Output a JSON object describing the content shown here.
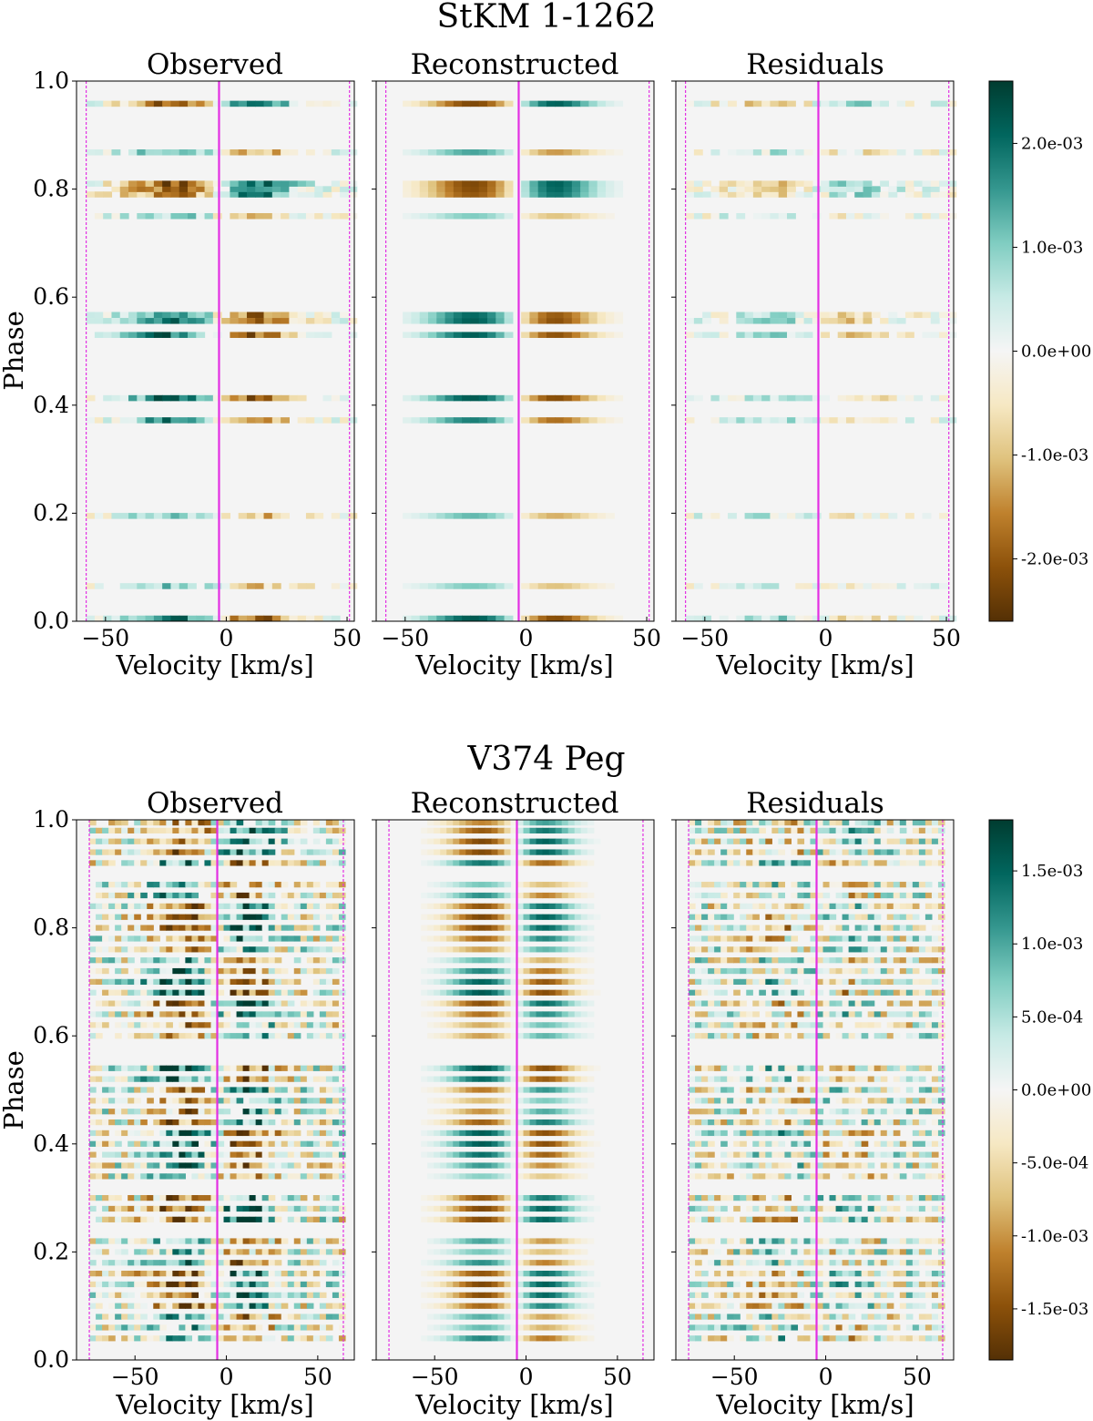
{
  "figures": [
    {
      "title": "StKM 1-1262",
      "ylabel": "Phase",
      "xlabel": "Velocity [km/s]",
      "colorbar_ticks": [
        "2.0e-03",
        "1.0e-03",
        "0.0e+00",
        "-1.0e-03",
        "-2.0e-03"
      ],
      "panels": [
        {
          "title": "Observed"
        },
        {
          "title": "Reconstructed"
        },
        {
          "title": "Residuals"
        }
      ]
    },
    {
      "title": "V374 Peg",
      "ylabel": "Phase",
      "xlabel": "Velocity [km/s]",
      "colorbar_ticks": [
        "1.5e-03",
        "1.0e-03",
        "5.0e-04",
        "0.0e+00",
        "-5.0e-04",
        "-1.0e-03",
        "-1.5e-03"
      ],
      "panels": [
        {
          "title": "Observed"
        },
        {
          "title": "Reconstructed"
        },
        {
          "title": "Residuals"
        }
      ]
    }
  ],
  "chart_data": [
    {
      "type": "heatmap",
      "title": "StKM 1-1262",
      "panels": [
        "Observed",
        "Reconstructed",
        "Residuals"
      ],
      "xlabel": "Velocity [km/s]",
      "ylabel": "Phase",
      "xlim": [
        -62,
        53
      ],
      "ylim": [
        0.0,
        1.0
      ],
      "xticks": [
        -50,
        0,
        50
      ],
      "xtick_labels": [
        "−50",
        "0",
        "50"
      ],
      "yticks": [
        0.0,
        0.2,
        0.4,
        0.6,
        0.8,
        1.0
      ],
      "ytick_labels": [
        "0.0",
        "0.2",
        "0.4",
        "0.6",
        "0.8",
        "1.0"
      ],
      "center_velocity": -3,
      "vsini_limits": [
        -58,
        51
      ],
      "colorbar_range": [
        -0.0026,
        0.0026
      ],
      "colorbar_ticks": [
        0.002,
        0.001,
        0.0,
        -0.001,
        -0.002
      ],
      "colormap": "BrBG",
      "phases": [
        0.005,
        0.065,
        0.195,
        0.372,
        0.413,
        0.53,
        0.556,
        0.567,
        0.75,
        0.79,
        0.8,
        0.81,
        0.868,
        0.958
      ]
    },
    {
      "type": "heatmap",
      "title": "V374 Peg",
      "panels": [
        "Observed",
        "Reconstructed",
        "Residuals"
      ],
      "xlabel": "Velocity [km/s]",
      "ylabel": "Phase",
      "xlim": [
        -82,
        70
      ],
      "ylim": [
        0.0,
        1.0
      ],
      "xticks": [
        -50,
        0,
        50
      ],
      "xtick_labels": [
        "−50",
        "0",
        "50"
      ],
      "yticks": [
        0.0,
        0.2,
        0.4,
        0.6,
        0.8,
        1.0
      ],
      "ytick_labels": [
        "0.0",
        "0.2",
        "0.4",
        "0.6",
        "0.8",
        "1.0"
      ],
      "center_velocity": -5,
      "vsini_limits": [
        -75,
        64
      ],
      "colorbar_range": [
        -0.00185,
        0.00185
      ],
      "colorbar_ticks": [
        0.0015,
        0.001,
        0.0005,
        0.0,
        -0.0005,
        -0.001,
        -0.0015
      ],
      "colormap": "BrBG",
      "phases": [
        0.04,
        0.06,
        0.08,
        0.1,
        0.12,
        0.14,
        0.16,
        0.18,
        0.2,
        0.22,
        0.26,
        0.28,
        0.3,
        0.34,
        0.36,
        0.38,
        0.4,
        0.42,
        0.44,
        0.46,
        0.48,
        0.5,
        0.52,
        0.54,
        0.6,
        0.62,
        0.64,
        0.66,
        0.68,
        0.7,
        0.72,
        0.74,
        0.76,
        0.78,
        0.8,
        0.82,
        0.84,
        0.86,
        0.88,
        0.92,
        0.94,
        0.96,
        0.98,
        1.0
      ]
    }
  ]
}
